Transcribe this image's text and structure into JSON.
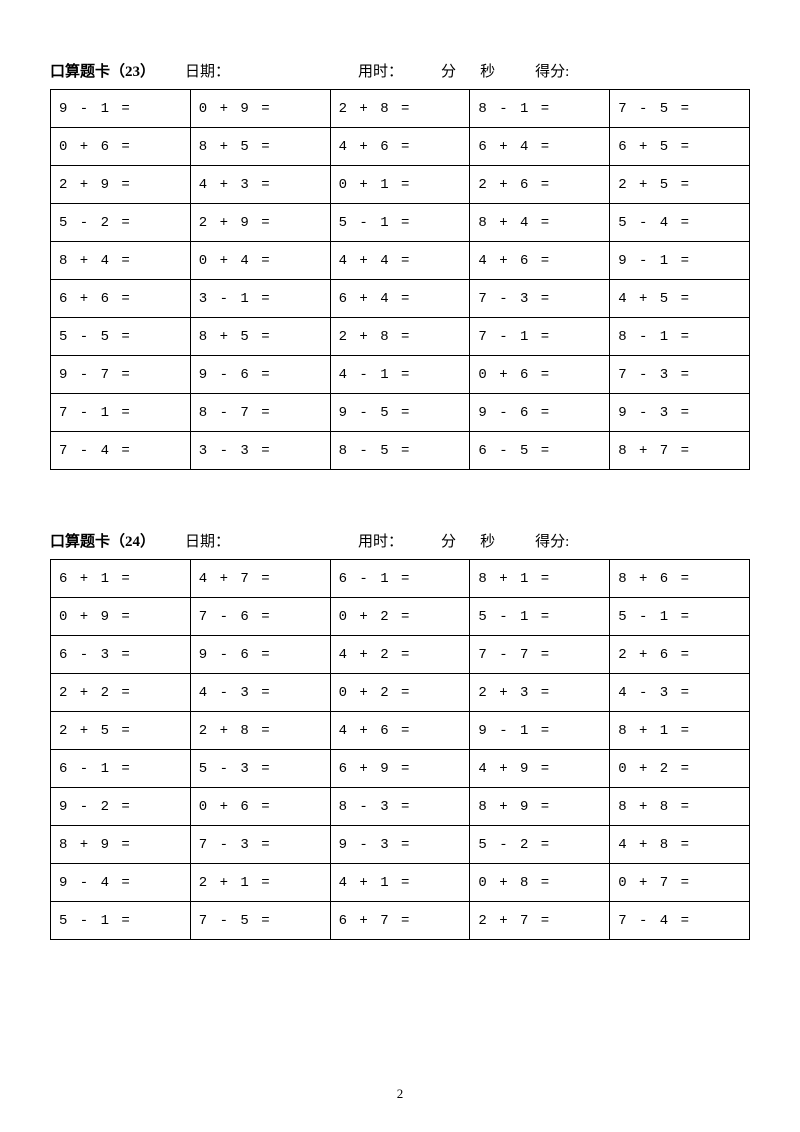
{
  "page_number": "2",
  "blocks": [
    {
      "title": "口算题卡（23）",
      "date_label": "日期：",
      "time_label": "用时：",
      "min_label": "分",
      "sec_label": "秒",
      "score_label": "得分:",
      "rows": [
        [
          "9 - 1 =",
          "0 + 9 =",
          "2 + 8 =",
          "8 - 1 =",
          "7 - 5 ="
        ],
        [
          "0 + 6 =",
          "8 + 5 =",
          "4 + 6 =",
          "6 + 4 =",
          "6 + 5 ="
        ],
        [
          "2 + 9 =",
          "4 + 3 =",
          "0 + 1 =",
          "2 + 6 =",
          "2 + 5 ="
        ],
        [
          "5 - 2 =",
          "2 + 9 =",
          "5 - 1 =",
          "8 + 4 =",
          "5 - 4 ="
        ],
        [
          "8 + 4 =",
          "0 + 4 =",
          "4 + 4 =",
          "4 + 6 =",
          "9 - 1 ="
        ],
        [
          "6 + 6 =",
          "3 - 1 =",
          "6 + 4 =",
          "7 - 3 =",
          "4 + 5 ="
        ],
        [
          "5 - 5 =",
          "8 + 5 =",
          "2 + 8 =",
          "7 - 1 =",
          "8 - 1 ="
        ],
        [
          "9 - 7 =",
          "9 - 6 =",
          "4 - 1 =",
          "0 + 6 =",
          "7 - 3 ="
        ],
        [
          "7 - 1 =",
          "8 - 7 =",
          "9 - 5 =",
          "9 - 6 =",
          "9 - 3 ="
        ],
        [
          "7 - 4 =",
          "3 - 3 =",
          "8 - 5 =",
          "6 - 5 =",
          "8 + 7 ="
        ]
      ]
    },
    {
      "title": "口算题卡（24）",
      "date_label": "日期：",
      "time_label": "用时：",
      "min_label": "分",
      "sec_label": "秒",
      "score_label": "得分:",
      "rows": [
        [
          "6 + 1 =",
          "4 + 7 =",
          "6 - 1 =",
          "8 + 1 =",
          "8 + 6 ="
        ],
        [
          "0 + 9 =",
          "7 - 6 =",
          "0 + 2 =",
          "5 - 1 =",
          "5 - 1 ="
        ],
        [
          "6 - 3 =",
          "9 - 6 =",
          "4 + 2 =",
          "7 - 7 =",
          "2 + 6 ="
        ],
        [
          "2 + 2 =",
          "4 - 3 =",
          "0 + 2 =",
          "2 + 3 =",
          "4 - 3 ="
        ],
        [
          "2 + 5 =",
          "2 + 8 =",
          "4 + 6 =",
          "9 - 1 =",
          "8 + 1 ="
        ],
        [
          "6 - 1 =",
          "5 - 3 =",
          "6 + 9 =",
          "4 + 9 =",
          "0 + 2 ="
        ],
        [
          "9 - 2 =",
          "0 + 6 =",
          "8 - 3 =",
          "8 + 9 =",
          "8 + 8 ="
        ],
        [
          "8 + 9 =",
          "7 - 3 =",
          "9 - 3 =",
          "5 - 2 =",
          "4 + 8 ="
        ],
        [
          "9 - 4 =",
          "2 + 1 =",
          "4 + 1 =",
          "0 + 8 =",
          "0 + 7 ="
        ],
        [
          "5 - 1 =",
          "7 - 5 =",
          "6 + 7 =",
          "2 + 7 =",
          "7 - 4 ="
        ]
      ]
    }
  ]
}
